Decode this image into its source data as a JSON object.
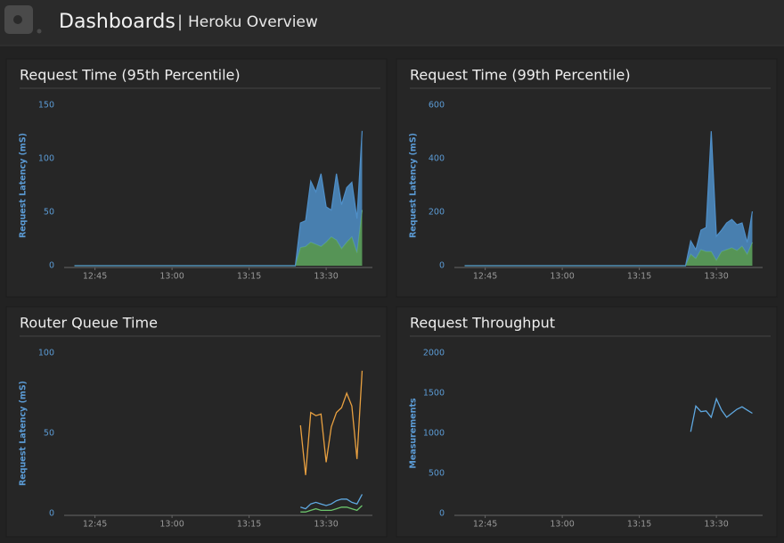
{
  "header": {
    "title": "Dashboards",
    "separator": "|",
    "subtitle": "Heroku Overview"
  },
  "chart_data": [
    {
      "type": "area",
      "stacked": true,
      "title": "Request Time (95th Percentile)",
      "y_label": "Request Latency (mS)",
      "x": [
        "12:41",
        "13:24",
        "13:25",
        "13:26",
        "13:27",
        "13:28",
        "13:29",
        "13:30",
        "13:31",
        "13:32",
        "13:33",
        "13:34",
        "13:35",
        "13:36",
        "13:37"
      ],
      "series": [
        {
          "color": "#5fa85f",
          "values": [
            0,
            0,
            17,
            18,
            22,
            20,
            18,
            22,
            27,
            24,
            16,
            22,
            27,
            12,
            52
          ]
        },
        {
          "color": "#4f8fc8",
          "values": [
            0,
            0,
            23,
            24,
            57,
            49,
            68,
            33,
            25,
            62,
            41,
            51,
            51,
            32,
            74
          ]
        }
      ],
      "xlim": [
        "12:39",
        "13:39"
      ],
      "xticks": [
        "12:45",
        "13:00",
        "13:15",
        "13:30"
      ],
      "ylim": [
        0,
        150
      ],
      "yticks": [
        0,
        50,
        100,
        150
      ]
    },
    {
      "type": "area",
      "stacked": true,
      "title": "Request Time (99th Percentile)",
      "y_label": "Request Latency (mS)",
      "x": [
        "12:41",
        "13:24",
        "13:25",
        "13:26",
        "13:27",
        "13:28",
        "13:29",
        "13:30",
        "13:31",
        "13:32",
        "13:33",
        "13:34",
        "13:35",
        "13:36",
        "13:37"
      ],
      "series": [
        {
          "color": "#5fa85f",
          "values": [
            0,
            0,
            43,
            27,
            60,
            53,
            53,
            20,
            53,
            60,
            67,
            57,
            73,
            43,
            87
          ]
        },
        {
          "color": "#4f8fc8",
          "values": [
            0,
            0,
            50,
            33,
            73,
            90,
            450,
            90,
            80,
            100,
            106,
            96,
            87,
            44,
            116
          ]
        }
      ],
      "xlim": [
        "12:39",
        "13:39"
      ],
      "xticks": [
        "12:45",
        "13:00",
        "13:15",
        "13:30"
      ],
      "ylim": [
        0,
        600
      ],
      "yticks": [
        0,
        200,
        400,
        600
      ]
    },
    {
      "type": "line",
      "title": "Router Queue Time",
      "y_label": "Request Latency (mS)",
      "x": [
        "13:25",
        "13:26",
        "13:27",
        "13:28",
        "13:29",
        "13:30",
        "13:31",
        "13:32",
        "13:33",
        "13:34",
        "13:35",
        "13:36",
        "13:37"
      ],
      "series": [
        {
          "color": "#e8a040",
          "values": [
            55,
            24,
            63,
            61,
            62,
            32,
            54,
            63,
            66,
            75,
            67,
            34,
            89
          ]
        },
        {
          "color": "#5fa8e0",
          "values": [
            4,
            3,
            6,
            7,
            6,
            5,
            6,
            8,
            9,
            9,
            7,
            6,
            12
          ]
        },
        {
          "color": "#6cc46c",
          "values": [
            1,
            1,
            2,
            3,
            2,
            2,
            2,
            3,
            4,
            4,
            3,
            2,
            5
          ]
        }
      ],
      "xlim": [
        "12:39",
        "13:39"
      ],
      "xticks": [
        "12:45",
        "13:00",
        "13:15",
        "13:30"
      ],
      "ylim": [
        0,
        100
      ],
      "yticks": [
        0,
        50,
        100
      ]
    },
    {
      "type": "line",
      "title": "Request Throughput",
      "y_label": "Measurements",
      "x": [
        "13:25",
        "13:26",
        "13:27",
        "13:28",
        "13:29",
        "13:30",
        "13:31",
        "13:32",
        "13:33",
        "13:34",
        "13:35",
        "13:36",
        "13:37"
      ],
      "series": [
        {
          "color": "#5fa8e0",
          "values": [
            1020,
            1340,
            1270,
            1280,
            1200,
            1430,
            1290,
            1200,
            1250,
            1300,
            1330,
            1290,
            1250
          ]
        }
      ],
      "xlim": [
        "12:39",
        "13:39"
      ],
      "xticks": [
        "12:45",
        "13:00",
        "13:15",
        "13:30"
      ],
      "ylim": [
        0,
        2000
      ],
      "yticks": [
        0,
        500,
        1000,
        1500,
        2000
      ]
    }
  ]
}
